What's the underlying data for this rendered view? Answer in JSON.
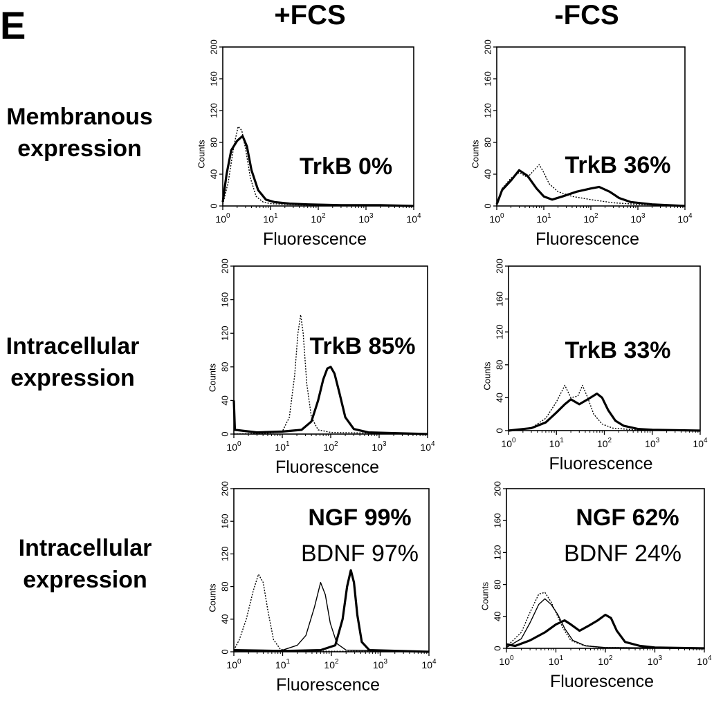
{
  "panel_label": "E",
  "columns": [
    "+FCS",
    "-FCS"
  ],
  "rows": [
    [
      "Membranous",
      "expression"
    ],
    [
      "Intracellular",
      "expression"
    ],
    [
      "Intracellular",
      "expression"
    ]
  ],
  "chart_data": [
    {
      "type": "line",
      "x_scale": "log",
      "xlabel": "Fluorescence",
      "ylabel": "Counts",
      "xlim": [
        1,
        10000
      ],
      "ylim": [
        0,
        200
      ],
      "x_ticks": [
        "10^0",
        "10^1",
        "10^2",
        "10^3",
        "10^4"
      ],
      "y_ticks": [
        0,
        40,
        80,
        120,
        160,
        200
      ],
      "annotations": [
        {
          "text": "TrkB  0%",
          "bold": true
        }
      ],
      "series": [
        {
          "style": "dotted",
          "points": [
            [
              1,
              2
            ],
            [
              1.3,
              30
            ],
            [
              1.7,
              75
            ],
            [
              2.1,
              100
            ],
            [
              2.5,
              95
            ],
            [
              3,
              72
            ],
            [
              3.8,
              35
            ],
            [
              5,
              12
            ],
            [
              7,
              5
            ],
            [
              10,
              3
            ],
            [
              20,
              2
            ],
            [
              60,
              1
            ],
            [
              300,
              1
            ],
            [
              10000,
              0
            ]
          ]
        },
        {
          "style": "solid",
          "points": [
            [
              1,
              5
            ],
            [
              1.2,
              40
            ],
            [
              1.5,
              70
            ],
            [
              2.0,
              82
            ],
            [
              2.6,
              88
            ],
            [
              3.2,
              75
            ],
            [
              4,
              45
            ],
            [
              5.5,
              20
            ],
            [
              8,
              8
            ],
            [
              12,
              5
            ],
            [
              25,
              3
            ],
            [
              60,
              2
            ],
            [
              300,
              1
            ],
            [
              2000,
              1
            ],
            [
              10000,
              0
            ]
          ]
        }
      ]
    },
    {
      "type": "line",
      "x_scale": "log",
      "xlabel": "Fluorescence",
      "ylabel": "Counts",
      "xlim": [
        1,
        10000
      ],
      "ylim": [
        0,
        200
      ],
      "x_ticks": [
        "10^0",
        "10^1",
        "10^2",
        "10^3",
        "10^4"
      ],
      "y_ticks": [
        0,
        40,
        80,
        120,
        160,
        200
      ],
      "annotations": [
        {
          "text": "TrkB  36%",
          "bold": true
        }
      ],
      "series": [
        {
          "style": "dotted",
          "points": [
            [
              1,
              2
            ],
            [
              1.3,
              22
            ],
            [
              2,
              35
            ],
            [
              3,
              42
            ],
            [
              4.5,
              36
            ],
            [
              6,
              44
            ],
            [
              8,
              52
            ],
            [
              10,
              42
            ],
            [
              13,
              28
            ],
            [
              20,
              18
            ],
            [
              40,
              12
            ],
            [
              100,
              8
            ],
            [
              300,
              4
            ],
            [
              1000,
              2
            ],
            [
              10000,
              0
            ]
          ]
        },
        {
          "style": "solid",
          "points": [
            [
              1,
              2
            ],
            [
              1.3,
              20
            ],
            [
              2,
              32
            ],
            [
              3,
              45
            ],
            [
              4.5,
              38
            ],
            [
              7,
              22
            ],
            [
              10,
              12
            ],
            [
              15,
              8
            ],
            [
              25,
              12
            ],
            [
              50,
              18
            ],
            [
              100,
              22
            ],
            [
              150,
              24
            ],
            [
              250,
              18
            ],
            [
              400,
              10
            ],
            [
              700,
              5
            ],
            [
              2000,
              2
            ],
            [
              10000,
              0
            ]
          ]
        }
      ]
    },
    {
      "type": "line",
      "x_scale": "log",
      "xlabel": "Fluorescence",
      "ylabel": "Counts",
      "xlim": [
        1,
        10000
      ],
      "ylim": [
        0,
        200
      ],
      "x_ticks": [
        "10^0",
        "10^1",
        "10^2",
        "10^3",
        "10^4"
      ],
      "y_ticks": [
        0,
        40,
        80,
        120,
        160,
        200
      ],
      "annotations": [
        {
          "text": "TrkB  85%",
          "bold": true
        }
      ],
      "series": [
        {
          "style": "dotted",
          "points": [
            [
              1,
              0
            ],
            [
              5,
              1
            ],
            [
              10,
              3
            ],
            [
              14,
              20
            ],
            [
              18,
              70
            ],
            [
              21,
              120
            ],
            [
              24,
              142
            ],
            [
              27,
              120
            ],
            [
              32,
              60
            ],
            [
              40,
              20
            ],
            [
              55,
              5
            ],
            [
              100,
              2
            ],
            [
              10000,
              0
            ]
          ]
        },
        {
          "style": "solid",
          "points": [
            [
              1,
              40
            ],
            [
              1.05,
              5
            ],
            [
              3,
              2
            ],
            [
              10,
              3
            ],
            [
              25,
              5
            ],
            [
              40,
              15
            ],
            [
              55,
              40
            ],
            [
              70,
              65
            ],
            [
              85,
              78
            ],
            [
              100,
              80
            ],
            [
              120,
              72
            ],
            [
              150,
              50
            ],
            [
              200,
              20
            ],
            [
              300,
              6
            ],
            [
              600,
              2
            ],
            [
              10000,
              0
            ]
          ]
        }
      ]
    },
    {
      "type": "line",
      "x_scale": "log",
      "xlabel": "Fluorescence",
      "ylabel": "Counts",
      "xlim": [
        1,
        10000
      ],
      "ylim": [
        0,
        200
      ],
      "x_ticks": [
        "10^0",
        "10^1",
        "10^2",
        "10^3",
        "10^4"
      ],
      "y_ticks": [
        0,
        40,
        80,
        120,
        160,
        200
      ],
      "annotations": [
        {
          "text": "TrkB  33%",
          "bold": true
        }
      ],
      "series": [
        {
          "style": "dotted",
          "points": [
            [
              1,
              0
            ],
            [
              3,
              3
            ],
            [
              6,
              15
            ],
            [
              10,
              35
            ],
            [
              15,
              55
            ],
            [
              20,
              40
            ],
            [
              28,
              42
            ],
            [
              35,
              55
            ],
            [
              45,
              40
            ],
            [
              60,
              20
            ],
            [
              90,
              8
            ],
            [
              150,
              3
            ],
            [
              400,
              1
            ],
            [
              10000,
              0
            ]
          ]
        },
        {
          "style": "solid",
          "points": [
            [
              1,
              0
            ],
            [
              3,
              3
            ],
            [
              6,
              10
            ],
            [
              10,
              22
            ],
            [
              15,
              32
            ],
            [
              20,
              38
            ],
            [
              30,
              32
            ],
            [
              45,
              38
            ],
            [
              70,
              45
            ],
            [
              90,
              40
            ],
            [
              120,
              25
            ],
            [
              170,
              12
            ],
            [
              250,
              6
            ],
            [
              500,
              2
            ],
            [
              1000,
              1
            ],
            [
              10000,
              0
            ]
          ]
        }
      ]
    },
    {
      "type": "line",
      "x_scale": "log",
      "xlabel": "Fluorescence",
      "ylabel": "Counts",
      "xlim": [
        1,
        10000
      ],
      "ylim": [
        0,
        200
      ],
      "x_ticks": [
        "10^0",
        "10^1",
        "10^2",
        "10^3",
        "10^4"
      ],
      "y_ticks": [
        0,
        40,
        80,
        120,
        160,
        200
      ],
      "annotations": [
        {
          "text": "NGF  99%",
          "bold": true
        },
        {
          "text": "BDNF  97%",
          "bold": false
        }
      ],
      "series": [
        {
          "style": "dotted",
          "points": [
            [
              1,
              2
            ],
            [
              1.3,
              15
            ],
            [
              1.8,
              40
            ],
            [
              2.5,
              75
            ],
            [
              3.2,
              95
            ],
            [
              4,
              85
            ],
            [
              5,
              50
            ],
            [
              6.5,
              15
            ],
            [
              9,
              3
            ],
            [
              15,
              1
            ],
            [
              10000,
              0
            ]
          ]
        },
        {
          "style": "thin",
          "points": [
            [
              1,
              0
            ],
            [
              10,
              2
            ],
            [
              20,
              8
            ],
            [
              30,
              20
            ],
            [
              45,
              55
            ],
            [
              60,
              85
            ],
            [
              75,
              70
            ],
            [
              95,
              35
            ],
            [
              130,
              10
            ],
            [
              200,
              2
            ],
            [
              10000,
              0
            ]
          ]
        },
        {
          "style": "solid",
          "points": [
            [
              1,
              2
            ],
            [
              10,
              1
            ],
            [
              60,
              2
            ],
            [
              120,
              8
            ],
            [
              170,
              40
            ],
            [
              210,
              80
            ],
            [
              250,
              100
            ],
            [
              290,
              85
            ],
            [
              340,
              45
            ],
            [
              420,
              12
            ],
            [
              600,
              2
            ],
            [
              10000,
              0
            ]
          ]
        }
      ]
    },
    {
      "type": "line",
      "x_scale": "log",
      "xlabel": "Fluorescence",
      "ylabel": "Counts",
      "xlim": [
        1,
        10000
      ],
      "ylim": [
        0,
        200
      ],
      "x_ticks": [
        "10^0",
        "10^1",
        "10^2",
        "10^3",
        "10^4"
      ],
      "y_ticks": [
        0,
        40,
        80,
        120,
        160,
        200
      ],
      "annotations": [
        {
          "text": "NGF  62%",
          "bold": true
        },
        {
          "text": "BDNF  24%",
          "bold": false
        }
      ],
      "series": [
        {
          "style": "dotted",
          "points": [
            [
              1,
              2
            ],
            [
              2,
              20
            ],
            [
              3,
              45
            ],
            [
              4.5,
              68
            ],
            [
              6,
              70
            ],
            [
              8,
              58
            ],
            [
              10,
              45
            ],
            [
              14,
              25
            ],
            [
              20,
              10
            ],
            [
              35,
              4
            ],
            [
              80,
              1
            ],
            [
              10000,
              0
            ]
          ]
        },
        {
          "style": "thin",
          "points": [
            [
              1,
              1
            ],
            [
              2,
              12
            ],
            [
              3,
              32
            ],
            [
              4.5,
              55
            ],
            [
              6,
              62
            ],
            [
              8,
              55
            ],
            [
              11,
              42
            ],
            [
              15,
              25
            ],
            [
              22,
              10
            ],
            [
              40,
              3
            ],
            [
              100,
              1
            ],
            [
              10000,
              0
            ]
          ]
        },
        {
          "style": "solid",
          "points": [
            [
              1,
              5
            ],
            [
              1.5,
              3
            ],
            [
              3,
              10
            ],
            [
              6,
              20
            ],
            [
              10,
              30
            ],
            [
              15,
              35
            ],
            [
              20,
              30
            ],
            [
              30,
              22
            ],
            [
              45,
              28
            ],
            [
              70,
              35
            ],
            [
              100,
              42
            ],
            [
              130,
              38
            ],
            [
              170,
              22
            ],
            [
              250,
              8
            ],
            [
              500,
              3
            ],
            [
              1000,
              1
            ],
            [
              10000,
              0
            ]
          ]
        }
      ]
    }
  ]
}
